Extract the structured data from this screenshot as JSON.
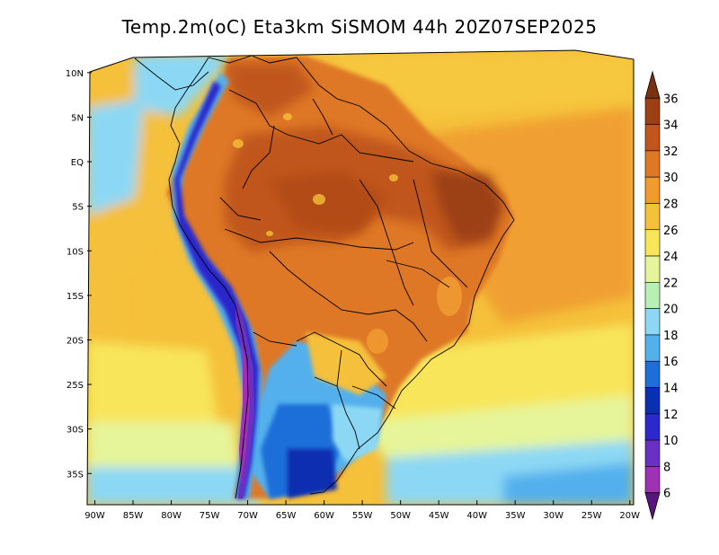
{
  "title": "Temp.2m(oC) Eta3km SiSMOM 44h 20Z07SEP2025",
  "map": {
    "lat_labels": [
      "10N",
      "5N",
      "EQ",
      "5S",
      "10S",
      "15S",
      "20S",
      "25S",
      "30S",
      "35S"
    ],
    "lon_labels": [
      "90W",
      "85W",
      "80W",
      "75W",
      "70W",
      "65W",
      "60W",
      "55W",
      "50W",
      "45W",
      "40W",
      "35W",
      "30W",
      "25W",
      "20W"
    ],
    "lat_values": [
      10,
      5,
      0,
      -5,
      -10,
      -15,
      -20,
      -25,
      -30,
      -35
    ],
    "lon_values": [
      -90,
      -85,
      -80,
      -75,
      -70,
      -65,
      -60,
      -55,
      -50,
      -45,
      -40,
      -35,
      -30,
      -25,
      -20
    ],
    "domain_lon": [
      -91,
      -19.5
    ],
    "domain_lat": [
      -38.5,
      11.5
    ]
  },
  "colorbar": {
    "labels": [
      "36",
      "34",
      "32",
      "30",
      "28",
      "26",
      "24",
      "22",
      "20",
      "18",
      "16",
      "14",
      "12",
      "10",
      "8",
      "6"
    ],
    "colors": [
      "#7a3110",
      "#9c4014",
      "#c0561a",
      "#de7826",
      "#f09a30",
      "#f5c03a",
      "#f8e55a",
      "#e6f59a",
      "#b8f0b4",
      "#8cd8f4",
      "#52b0ec",
      "#1e6ed8",
      "#0a2fb0",
      "#2c28cc",
      "#6a30c4",
      "#a030b4",
      "#5a1480"
    ]
  }
}
